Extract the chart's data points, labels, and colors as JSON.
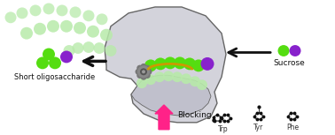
{
  "fig_width": 3.78,
  "fig_height": 1.53,
  "dpi": 100,
  "bg_color": "#ffffff",
  "enzyme_color": "#d3d3db",
  "enzyme_outline": "#666666",
  "green_bright": "#55dd11",
  "green_light": "#b8eaaa",
  "purple": "#8822cc",
  "pink_arrow": "#ff2288",
  "black": "#111111",
  "yellow_chain": "#cc9900",
  "sucrose_label": "Sucrose",
  "oligo_label": "Short oligosaccharide",
  "blocking_label": "Blocking",
  "trp_label": "Trp",
  "tyr_label": "Tyr",
  "phe_label": "Phe"
}
